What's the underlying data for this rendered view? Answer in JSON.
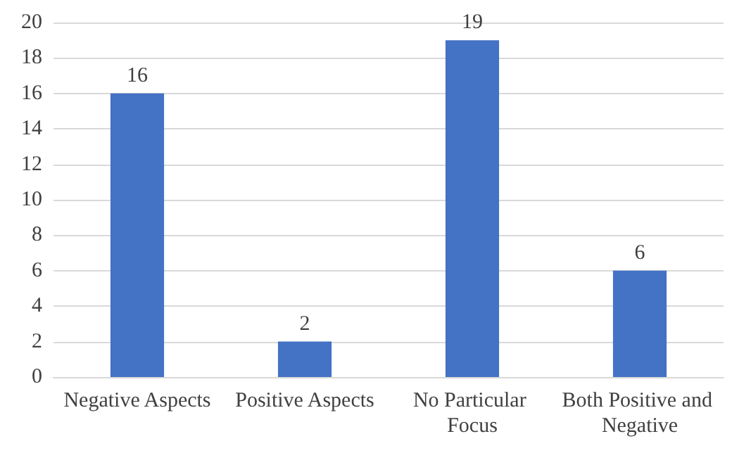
{
  "chart_data": {
    "type": "bar",
    "categories": [
      "Negative Aspects",
      "Positive Aspects",
      "No Particular Focus",
      "Both Positive and Negative"
    ],
    "values": [
      16,
      2,
      19,
      6
    ],
    "color": "#4472c4",
    "ylim": [
      0,
      20
    ],
    "yticks": [
      0,
      2,
      4,
      6,
      8,
      10,
      12,
      14,
      16,
      18,
      20
    ],
    "grid": "y",
    "data_labels": true
  }
}
